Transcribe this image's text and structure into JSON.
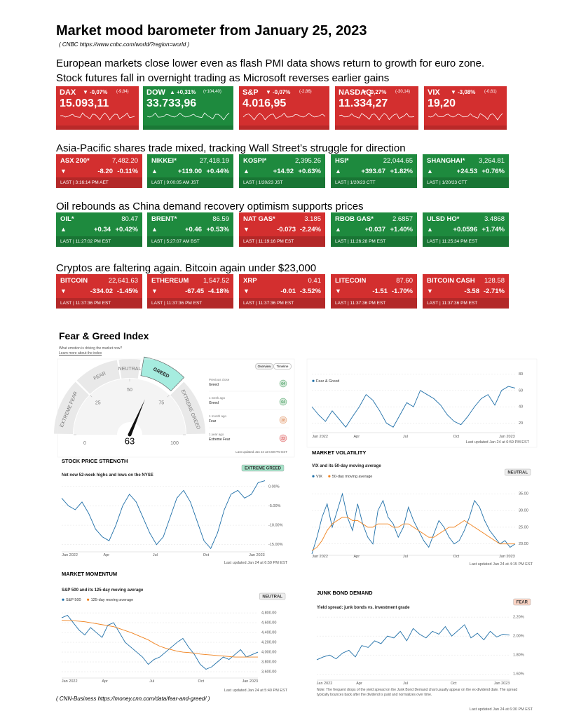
{
  "title": "Market mood barometer from January 25, 2023",
  "source": {
    "prefix": "( CNBC",
    "link": "https://www.cnbc.com/world/?region=world",
    "suffix": ")"
  },
  "sections": [
    {
      "heading": "European markets close lower even as flash PMI data shows return to growth for euro zone. Stock futures fall in overnight trading as Microsoft reverses earlier gains",
      "tiles": [
        {
          "name": "DAX",
          "arrow": "▼",
          "pct": "-0,07%",
          "change": "(-9,84)",
          "value": "15.093,11",
          "color": "#d32f2f"
        },
        {
          "name": "DOW",
          "arrow": "▲",
          "pct": "+0,31%",
          "change": "(+104,40)",
          "value": "33.733,96",
          "color": "#1e8a3e"
        },
        {
          "name": "S&P",
          "arrow": "▼",
          "pct": "-0,07%",
          "change": "(-2,86)",
          "value": "4.016,95",
          "color": "#d32f2f"
        },
        {
          "name": "NASDAQ",
          "arrow": "▼",
          "pct": "-0,27%",
          "change": "(-30,14)",
          "value": "11.334,27",
          "color": "#d32f2f"
        },
        {
          "name": "VIX",
          "arrow": "▼",
          "pct": "-3,08%",
          "change": "(-0,61)",
          "value": "19,20",
          "color": "#d32f2f"
        }
      ]
    },
    {
      "heading": "Asia-Pacific shares trade mixed, tracking Wall Street’s struggle for direction",
      "tiles": [
        {
          "name": "ASX 200*",
          "value": "7,482.20",
          "arrow": "▼",
          "change": "-8.20",
          "pct": "-0.11%",
          "time": "LAST | 3:16:14 PM AET",
          "color": "#d32f2f"
        },
        {
          "name": "NIKKEI*",
          "value": "27,418.19",
          "arrow": "▲",
          "change": "+119.00",
          "pct": "+0.44%",
          "time": "LAST | 9:00:05 AM JST",
          "color": "#1e8a3e"
        },
        {
          "name": "KOSPI*",
          "value": "2,395.26",
          "arrow": "▲",
          "change": "+14.92",
          "pct": "+0.63%",
          "time": "LAST | 1/20/23 JST",
          "color": "#1e8a3e"
        },
        {
          "name": "HSI*",
          "value": "22,044.65",
          "arrow": "▲",
          "change": "+393.67",
          "pct": "+1.82%",
          "time": "LAST | 1/20/23 CTT",
          "color": "#1e8a3e"
        },
        {
          "name": "SHANGHAI*",
          "value": "3,264.81",
          "arrow": "▲",
          "change": "+24.53",
          "pct": "+0.76%",
          "time": "LAST | 1/20/23 CTT",
          "color": "#1e8a3e"
        }
      ]
    },
    {
      "heading": "Oil rebounds as China demand recovery optimism supports prices",
      "tiles": [
        {
          "name": "OIL*",
          "value": "80.47",
          "arrow": "▲",
          "change": "+0.34",
          "pct": "+0.42%",
          "time": "LAST | 11:27:02 PM EST",
          "color": "#1e8a3e"
        },
        {
          "name": "BRENT*",
          "value": "86.59",
          "arrow": "▲",
          "change": "+0.46",
          "pct": "+0.53%",
          "time": "LAST | 5:27:07 AM BST",
          "color": "#1e8a3e"
        },
        {
          "name": "NAT GAS*",
          "value": "3.185",
          "arrow": "▼",
          "change": "-0.073",
          "pct": "-2.24%",
          "time": "LAST | 11:19:16 PM EST",
          "color": "#d32f2f"
        },
        {
          "name": "RBOB GAS*",
          "value": "2.6857",
          "arrow": "▲",
          "change": "+0.037",
          "pct": "+1.40%",
          "time": "LAST | 11:26:28 PM EST",
          "color": "#1e8a3e"
        },
        {
          "name": "ULSD HO*",
          "value": "3.4868",
          "arrow": "▲",
          "change": "+0.0596",
          "pct": "+1.74%",
          "time": "LAST | 11:25:34 PM EST",
          "color": "#1e8a3e"
        }
      ]
    },
    {
      "heading": "Cryptos are faltering again. Bitcoin again under $23,000",
      "tiles": [
        {
          "name": "BITCOIN",
          "value": "22,641.63",
          "arrow": "▼",
          "change": "-334.02",
          "pct": "-1.45%",
          "time": "LAST | 11:37:36 PM EST",
          "color": "#d32f2f"
        },
        {
          "name": "ETHEREUM",
          "value": "1,547.52",
          "arrow": "▼",
          "change": "-67.45",
          "pct": "-4.18%",
          "time": "LAST | 11:37:36 PM EST",
          "color": "#d32f2f"
        },
        {
          "name": "XRP",
          "value": "0.41",
          "arrow": "▼",
          "change": "-0.01",
          "pct": "-3.52%",
          "time": "LAST | 11:37:36 PM EST",
          "color": "#d32f2f"
        },
        {
          "name": "LITECOIN",
          "value": "87.60",
          "arrow": "▼",
          "change": "-1.51",
          "pct": "-1.70%",
          "time": "LAST | 11:37:36 PM EST",
          "color": "#d32f2f"
        },
        {
          "name": "BITCOIN CASH",
          "value": "128.58",
          "arrow": "▼",
          "change": "-3.58",
          "pct": "-2.71%",
          "time": "LAST | 11:37:36 PM EST",
          "color": "#d32f2f"
        }
      ]
    }
  ],
  "fear_greed": {
    "title": "Fear & Greed Index",
    "subtitle": "What emotion is driving the market now?",
    "link": "Learn more about the index",
    "toggles": [
      "Overview",
      "Timeline"
    ],
    "gauge": {
      "labels": [
        "EXTREME FEAR",
        "FEAR",
        "NEUTRAL",
        "GREED",
        "EXTREME GREED"
      ],
      "ticks": [
        0,
        25,
        50,
        75,
        100
      ],
      "value": 63,
      "updated": "Last updated Jan 24 at 6:59 PM EST"
    },
    "history": [
      {
        "label": "Previous close",
        "rating": "Greed",
        "value": 64,
        "color": "#1e8a3e"
      },
      {
        "label": "1 week ago",
        "rating": "Greed",
        "value": 64,
        "color": "#1e8a3e"
      },
      {
        "label": "1 month ago",
        "rating": "Fear",
        "value": 38,
        "color": "#d9773a"
      },
      {
        "label": "1 year ago",
        "rating": "Extreme Fear",
        "value": 22,
        "color": "#d32f2f"
      }
    ],
    "timeline": {
      "type": "line",
      "ylim": [
        10,
        90
      ],
      "yticks": [
        80,
        60,
        40,
        20
      ],
      "xlabels": [
        "Jan 2022",
        "Apr",
        "Jul",
        "Oct",
        "Jan 2023"
      ],
      "series": [
        {
          "name": "Fear & Greed",
          "color": "#1f6fa8",
          "values": [
            40,
            30,
            22,
            35,
            25,
            15,
            28,
            40,
            55,
            48,
            35,
            20,
            15,
            30,
            45,
            40,
            60,
            55,
            50,
            42,
            30,
            22,
            18,
            28,
            40,
            50,
            55,
            42,
            60,
            65,
            63
          ]
        }
      ],
      "updated": "Last updated Jan 24 at 6:59 PM EST"
    },
    "charts": [
      {
        "type": "line",
        "title": "STOCK PRICE STRENGTH",
        "subtitle": "Net new 52-week highs and lows on the NYSE",
        "badge": "EXTREME GREED",
        "badge_color": "#a6e3c9",
        "ylim": [
          -16.5,
          2.5
        ],
        "yticks": [
          {
            "value": 0,
            "label": "0.00%"
          },
          {
            "value": -5,
            "label": "-5.00%"
          },
          {
            "value": -10,
            "label": "-10.00%"
          },
          {
            "value": -15,
            "label": "-15.00%"
          }
        ],
        "xlabels": [
          "Jan 2022",
          "Apr",
          "Jul",
          "Oct",
          "Jan 2023"
        ],
        "series": [
          {
            "color": "#1f6fa8",
            "values": [
              -3,
              -5,
              -6,
              -4,
              -7,
              -11,
              -13,
              -14,
              -10,
              -5,
              -2,
              -4,
              -8,
              -12,
              -15,
              -13,
              -8,
              -3,
              -1,
              -4,
              -9,
              -14,
              -16,
              -12,
              -6,
              -2,
              -1,
              -3,
              -2,
              1,
              1.5
            ]
          }
        ],
        "updated": "Last updated Jan 24 at 6:59 PM EST"
      },
      {
        "type": "line",
        "title": "MARKET VOLATILITY",
        "subtitle": "VIX and its 50-day moving average",
        "badge": "NEUTRAL",
        "badge_color": "#eeeeee",
        "ylim": [
          17,
          38
        ],
        "yticks": [
          {
            "value": 35,
            "label": "35.00"
          },
          {
            "value": 30,
            "label": "30.00"
          },
          {
            "value": 25,
            "label": "25.00"
          },
          {
            "value": 20,
            "label": "20.00"
          }
        ],
        "xlabels": [
          "Jan 2022",
          "Apr",
          "Jul",
          "Oct",
          "Jan 2023"
        ],
        "series": [
          {
            "name": "VIX",
            "color": "#1f6fa8",
            "values": [
              17,
              22,
              28,
              32,
              25,
              30,
              35,
              28,
              24,
              32,
              26,
              22,
              20,
              30,
              33,
              28,
              26,
              22,
              25,
              31,
              27,
              24,
              21,
              19,
              23,
              27,
              25,
              22,
              20,
              21,
              24,
              28,
              33,
              31,
              27,
              24,
              22,
              20,
              21,
              19,
              20
            ]
          },
          {
            "name": "50-day moving average",
            "color": "#f0821e",
            "values": [
              18,
              19,
              21,
              24,
              26,
              27,
              28,
              28,
              27,
              27,
              26,
              25,
              25,
              26,
              26,
              26,
              25,
              25,
              26,
              26,
              25,
              24,
              23,
              22,
              22,
              23,
              24,
              25,
              25,
              26,
              27,
              26,
              25,
              24,
              23,
              22,
              21,
              20,
              20,
              20,
              20
            ]
          }
        ],
        "updated": "Last updated Jan 24 at 4:15 PM EST"
      },
      {
        "type": "line",
        "title": "MARKET MOMENTUM",
        "subtitle": "S&P 500 and its 125-day moving average",
        "badge": "NEUTRAL",
        "badge_color": "#eeeeee",
        "ylim": [
          3500,
          4930
        ],
        "yticks": [
          {
            "value": 4800,
            "label": "4,800.00"
          },
          {
            "value": 4600,
            "label": "4,600.00"
          },
          {
            "value": 4400,
            "label": "4,400.00"
          },
          {
            "value": 4200,
            "label": "4,200.00"
          },
          {
            "value": 4000,
            "label": "4,000.00"
          },
          {
            "value": 3800,
            "label": "3,800.00"
          },
          {
            "value": 3600,
            "label": "3,600.00"
          }
        ],
        "xlabels": [
          "Jan 2022",
          "Apr",
          "Jul",
          "Oct",
          "Jan 2023"
        ],
        "series": [
          {
            "name": "S&P 500",
            "color": "#1f6fa8",
            "values": [
              4700,
              4750,
              4600,
              4450,
              4350,
              4500,
              4400,
              4300,
              4550,
              4600,
              4400,
              4200,
              4100,
              4000,
              3900,
              3750,
              3850,
              3900,
              4000,
              4100,
              4200,
              4280,
              4100,
              3950,
              3750,
              3650,
              3700,
              3800,
              3900,
              3850,
              3950,
              4050,
              3900,
              3950,
              4000
            ]
          },
          {
            "name": "125-day moving average",
            "color": "#f0821e",
            "values": [
              4650,
              4645,
              4640,
              4630,
              4620,
              4600,
              4580,
              4560,
              4540,
              4520,
              4480,
              4440,
              4400,
              4350,
              4300,
              4250,
              4180,
              4120,
              4080,
              4050,
              4020,
              4000,
              3990,
              3980,
              3960,
              3950,
              3940,
              3930,
              3920,
              3910,
              3900,
              3900,
              3900,
              3900,
              3900
            ]
          }
        ],
        "updated": "Last updated Jan 24 at 5:40 PM EST"
      },
      {
        "type": "line",
        "title": "JUNK BOND DEMAND",
        "subtitle": "Yield spread: junk bonds vs. investment grade",
        "badge": "FEAR",
        "badge_color": "#fcd5c5",
        "ylim": [
          1.55,
          2.26
        ],
        "yticks": [
          {
            "value": 2.2,
            "label": "2.20%"
          },
          {
            "value": 2,
            "label": "2.00%"
          },
          {
            "value": 1.8,
            "label": "1.80%"
          },
          {
            "value": 1.6,
            "label": "1.60%"
          }
        ],
        "xlabels": [
          "Jan 2022",
          "Apr",
          "Jul",
          "Oct",
          "Jan 2023"
        ],
        "series": [
          {
            "color": "#1f6fa8",
            "values": [
              1.75,
              1.78,
              1.8,
              1.76,
              1.82,
              1.85,
              1.78,
              1.9,
              1.88,
              1.95,
              1.92,
              2,
              1.98,
              2.05,
              1.95,
              2.08,
              2.02,
              1.98,
              2.05,
              2.02,
              2.1,
              2,
              2.06,
              2.12,
              1.98,
              2.03,
              1.96,
              2.05,
              1.99,
              2.02,
              2.01
            ]
          }
        ],
        "note": "Note: The frequent drops of the yield spread on the Junk Bond Demand chart usually appear on the ex-dividend date. The spread typically bounces back after the dividend is paid and normalizes over time.",
        "updated": "Last updated Jan 24 at 6:30 PM EST"
      }
    ]
  },
  "footer": {
    "prefix": "( CNN-Business",
    "link": "https://money.cnn.com/data/fear-and-greed/",
    "suffix": ")"
  }
}
